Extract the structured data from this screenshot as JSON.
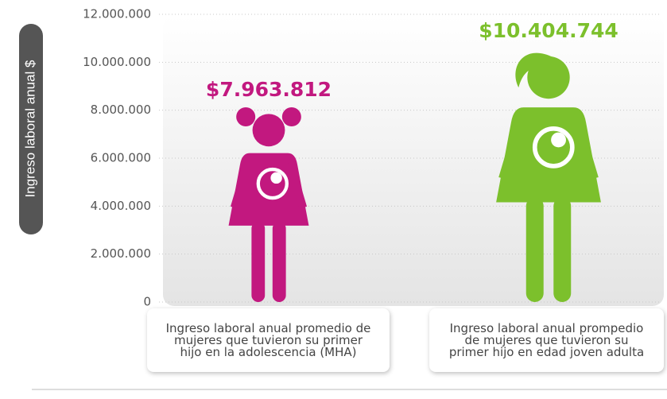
{
  "chart_data": {
    "type": "pictogram",
    "y_label": "Ingreso laboral anual $",
    "categories": [
      "Ingreso laboral anual promedio de mujeres que tuvieron su primer hijo en la adolescencia (MHA)",
      "Ingreso laboral anual prompedio de mujeres que tuvieron su primer hijo en edad joven adulta"
    ],
    "values": [
      7963812,
      10404744
    ],
    "value_labels": [
      "$7.963.812",
      "$10.404.744"
    ],
    "colors": [
      "#c2187f",
      "#7cc02c"
    ],
    "ylim": [
      0,
      12000000
    ],
    "yticks": [
      0,
      {
        "value": 2000000,
        "label": "2.000.000"
      },
      {
        "value": 4000000,
        "label": "4.000.000"
      },
      {
        "value": 6000000,
        "label": "6.000.000"
      },
      {
        "value": 8000000,
        "label": "8.000.000"
      },
      {
        "value": 10000000,
        "label": "10.000.000"
      },
      {
        "value": 12000000,
        "label": "12.000.000"
      }
    ],
    "grid": true
  }
}
